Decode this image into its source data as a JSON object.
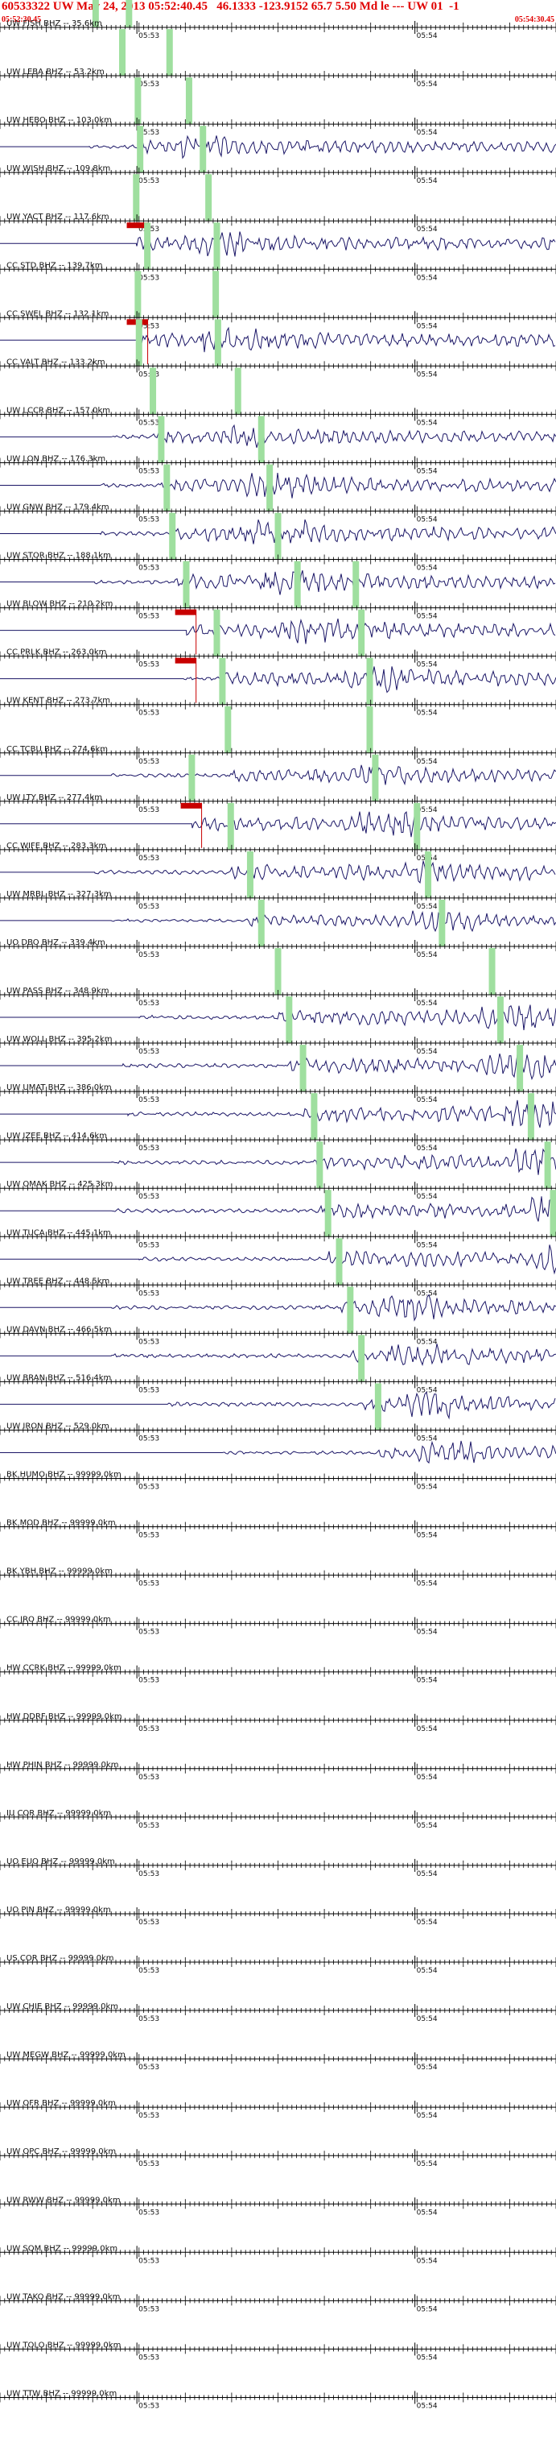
{
  "header": {
    "title": "60533322 UW May 24, 2013 05:52:40.45   46.1333 -123.9152 65.7 5.50 Md le --- UW 01  -1",
    "start_time": "05:52:30.45",
    "end_time": "05:54:30.45"
  },
  "colors": {
    "header": "#e00000",
    "trace": "#1a1566",
    "pick_marker": "#c80000",
    "phase_band": "#9fdf9f",
    "axis": "#000000"
  },
  "chart_data": {
    "type": "line",
    "title": "60533322 UW May 24, 2013 05:52:40.45   46.1333 -123.9152 65.7 5.50 Md le --- UW 01  -1",
    "x_range_label": [
      "05:52:30.45",
      "05:54:30.45"
    ],
    "tick_labels": [
      "05:53",
      "05:54"
    ],
    "series": [
      {
        "name": "UW FISH BHZ -- 35.6km",
        "has_trace": false,
        "bands": [
          0.172,
          0.232
        ],
        "pick": null
      },
      {
        "name": "UW LEBA BHZ -- 53.2km",
        "has_trace": false,
        "bands": [
          0.22,
          0.305
        ],
        "pick": null
      },
      {
        "name": "UW HEBO BHZ -- 103.0km",
        "has_trace": true,
        "start": 0.16,
        "amp": 16,
        "bands": [
          0.248,
          0.34
        ],
        "pick": null
      },
      {
        "name": "UW WISH BHZ -- 109.8km",
        "has_trace": false,
        "bands": [
          0.252,
          0.365
        ],
        "pick": null
      },
      {
        "name": "UW YACT BHZ -- 117.6km",
        "has_trace": true,
        "start": 0.245,
        "amp": 18,
        "bands": [
          0.245,
          0.375
        ],
        "pick": 0.228
      },
      {
        "name": "CC STD BHZ -- 139.7km",
        "has_trace": false,
        "bands": [
          0.265,
          0.39
        ],
        "pick": null
      },
      {
        "name": "CC SWEL BHZ -- 132.1km",
        "has_trace": true,
        "start": 0.248,
        "amp": 18,
        "bands": [
          0.248,
          0.388
        ],
        "pick": 0.228
      },
      {
        "name": "CC VALT BHZ -- 133.2km",
        "has_trace": false,
        "bands": [
          0.25,
          0.392
        ],
        "pick": null
      },
      {
        "name": "UW LCCR BHZ -- 157.0km",
        "has_trace": true,
        "start": 0.2,
        "amp": 16,
        "bands": [
          0.275,
          0.428
        ],
        "pick": null
      },
      {
        "name": "UW LON BHZ -- 176.3km",
        "has_trace": true,
        "start": 0.18,
        "amp": 18,
        "bands": [
          0.29,
          0.47
        ],
        "pick": null
      },
      {
        "name": "UW GNW BHZ -- 179.4km",
        "has_trace": true,
        "start": 0.18,
        "amp": 18,
        "bands": [
          0.3,
          0.485
        ],
        "pick": null
      },
      {
        "name": "UW STOR BHZ -- 188.1km",
        "has_trace": true,
        "start": 0.17,
        "amp": 18,
        "bands": [
          0.31,
          0.5
        ],
        "pick": null
      },
      {
        "name": "UW BLOW BHZ -- 210.2km",
        "has_trace": true,
        "start": 0.335,
        "amp": 18,
        "bands": [
          0.335,
          0.535,
          0.64
        ],
        "pick": 0.315
      },
      {
        "name": "CC PRLK BHZ -- 263.0km",
        "has_trace": true,
        "start": 0.33,
        "amp": 18,
        "bands": [
          0.39,
          0.65
        ],
        "pick": 0.315
      },
      {
        "name": "UW KENT BHZ -- 273.7km",
        "has_trace": false,
        "bands": [
          0.4,
          0.665
        ],
        "pick": null
      },
      {
        "name": "CC TCBU BHZ -- 274.6km",
        "has_trace": true,
        "start": 0.2,
        "amp": 16,
        "bands": [
          0.41,
          0.665
        ],
        "pick": null
      },
      {
        "name": "UW LTY BHZ -- 277.4km",
        "has_trace": true,
        "start": 0.345,
        "amp": 18,
        "bands": [
          0.345,
          0.675
        ],
        "pick": 0.325
      },
      {
        "name": "CC WIFE BHZ -- 283.3km",
        "has_trace": true,
        "start": 0.17,
        "amp": 18,
        "bands": [
          0.415,
          0.75
        ],
        "pick": null
      },
      {
        "name": "UW MRBL BHZ -- 327.3km",
        "has_trace": true,
        "start": 0.2,
        "amp": 14,
        "bands": [
          0.45,
          0.77
        ],
        "pick": null
      },
      {
        "name": "UO DBO BHZ -- 339.4km",
        "has_trace": false,
        "bands": [
          0.47,
          0.795
        ],
        "pick": null
      },
      {
        "name": "UW PASS BHZ -- 348.9km",
        "has_trace": true,
        "start": 0.25,
        "amp": 18,
        "bands": [
          0.5,
          0.885
        ],
        "pick": null
      },
      {
        "name": "UW WOLL BHZ -- 395.2km",
        "has_trace": true,
        "start": 0.22,
        "amp": 18,
        "bands": [
          0.52,
          0.9
        ],
        "pick": null
      },
      {
        "name": "UW UMAT BHZ -- 386.0km",
        "has_trace": true,
        "start": 0.23,
        "amp": 18,
        "bands": [
          0.545,
          0.935
        ],
        "pick": null
      },
      {
        "name": "UW IZEE BHZ -- 414.6km",
        "has_trace": true,
        "start": 0.2,
        "amp": 18,
        "bands": [
          0.565,
          0.955
        ],
        "pick": null
      },
      {
        "name": "UW OMAK BHZ -- 425.3km",
        "has_trace": true,
        "start": 0.2,
        "amp": 18,
        "bands": [
          0.575,
          0.985
        ],
        "pick": null
      },
      {
        "name": "UW TUCA BHZ -- 445.1km",
        "has_trace": true,
        "start": 0.25,
        "amp": 18,
        "bands": [
          0.59,
          0.995
        ],
        "pick": null
      },
      {
        "name": "UW TREE BHZ -- 448.5km",
        "has_trace": true,
        "start": 0.2,
        "amp": 18,
        "bands": [
          0.61
        ],
        "pick": null
      },
      {
        "name": "UW DAVN BHZ -- 466.5km",
        "has_trace": true,
        "start": 0.2,
        "amp": 18,
        "bands": [
          0.63
        ],
        "pick": null
      },
      {
        "name": "UW BRAN BHZ -- 516.4km",
        "has_trace": true,
        "start": 0.3,
        "amp": 18,
        "bands": [
          0.65
        ],
        "pick": null
      },
      {
        "name": "UW IRON BHZ -- 529.0km",
        "has_trace": true,
        "start": 0.4,
        "amp": 16,
        "bands": [
          0.68
        ],
        "pick": null
      },
      {
        "name": "BK HUMO BHZ -- 99999.0km",
        "has_trace": false,
        "bands": [],
        "pick": null
      },
      {
        "name": "BK MOD BHZ -- 99999.0km",
        "has_trace": false,
        "bands": [],
        "pick": null
      },
      {
        "name": "BK YBH BHZ -- 99999.0km",
        "has_trace": false,
        "bands": [],
        "pick": null
      },
      {
        "name": "CC JRO BHZ -- 99999.0km",
        "has_trace": false,
        "bands": [],
        "pick": null
      },
      {
        "name": "HW CCRK BHZ -- 99999.0km",
        "has_trace": false,
        "bands": [],
        "pick": null
      },
      {
        "name": "HW DDRF BHZ -- 99999.0km",
        "has_trace": false,
        "bands": [],
        "pick": null
      },
      {
        "name": "HW PHIN BHZ -- 99999.0km",
        "has_trace": false,
        "bands": [],
        "pick": null
      },
      {
        "name": "IU COR BHZ -- 99999.0km",
        "has_trace": false,
        "bands": [],
        "pick": null
      },
      {
        "name": "UO EUO BHZ -- 99999.0km",
        "has_trace": false,
        "bands": [],
        "pick": null
      },
      {
        "name": "UO PIN BHZ -- 99999.0km",
        "has_trace": false,
        "bands": [],
        "pick": null
      },
      {
        "name": "US COR BHZ -- 99999.0km",
        "has_trace": false,
        "bands": [],
        "pick": null
      },
      {
        "name": "UW CHIE BHZ -- 99999.0km",
        "has_trace": false,
        "bands": [],
        "pick": null
      },
      {
        "name": "UW MEGW BHZ -- 99999.0km",
        "has_trace": false,
        "bands": [],
        "pick": null
      },
      {
        "name": "UW OFR BHZ -- 99999.0km",
        "has_trace": false,
        "bands": [],
        "pick": null
      },
      {
        "name": "UW OPC BHZ -- 99999.0km",
        "has_trace": false,
        "bands": [],
        "pick": null
      },
      {
        "name": "UW RWW BHZ -- 99999.0km",
        "has_trace": false,
        "bands": [],
        "pick": null
      },
      {
        "name": "UW SQM BHZ -- 99999.0km",
        "has_trace": false,
        "bands": [],
        "pick": null
      },
      {
        "name": "UW TAKO BHZ -- 99999.0km",
        "has_trace": false,
        "bands": [],
        "pick": null
      },
      {
        "name": "UW TOLO BHZ -- 99999.0km",
        "has_trace": false,
        "bands": [],
        "pick": null
      },
      {
        "name": "UW TTW BHZ -- 99999.0km",
        "has_trace": false,
        "bands": [],
        "pick": null
      }
    ]
  }
}
